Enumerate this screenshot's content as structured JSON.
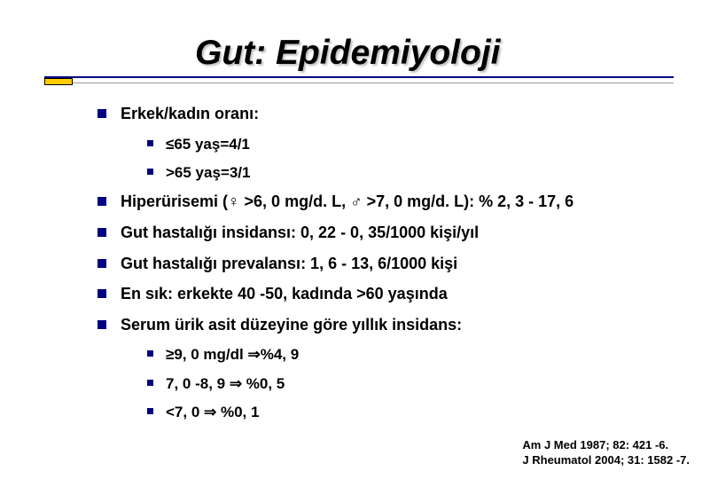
{
  "title": "Gut: Epidemiyoloji",
  "bullets": {
    "b1": "Erkek/kadın oranı:",
    "b1a": "≤65 yaş=4/1",
    "b1b": ">65 yaş=3/1",
    "b2": "Hiperürisemi (♀ >6, 0 mg/d. L, ♂ >7, 0 mg/d. L): % 2, 3 - 17, 6",
    "b3": "Gut hastalığı insidansı: 0, 22 - 0, 35/1000 kişi/yıl",
    "b4": "Gut hastalığı prevalansı: 1, 6 - 13, 6/1000 kişi",
    "b5": "En sık: erkekte 40 -50, kadında >60 yaşında",
    "b6": "Serum ürik asit düzeyine göre yıllık insidans:",
    "b6a": "≥9, 0 mg/dl ⇒%4, 9",
    "b6b": " 7, 0 -8, 9 ⇒ %0, 5",
    "b6c": "<7, 0 ⇒ %0, 1"
  },
  "citation": {
    "line1": "Am J Med 1987; 82: 421 -6.",
    "line2": "J Rheumatol 2004; 31: 1582 -7."
  }
}
